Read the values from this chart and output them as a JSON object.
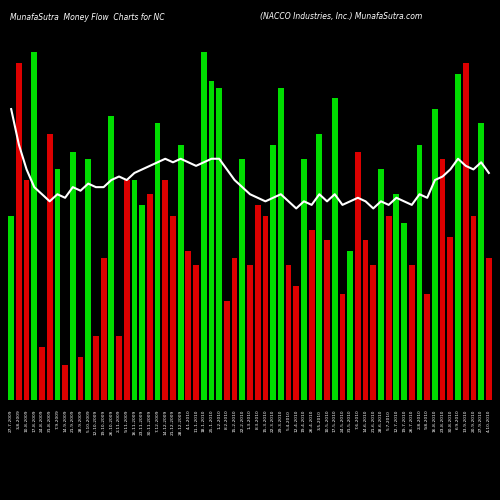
{
  "title_left": "MunafaSutra  Money Flow  Charts for NC",
  "title_right": "(NACCO Industries, Inc.) MunafaSutra.com",
  "background_color": "#000000",
  "bar_colors": [
    "green",
    "red",
    "red",
    "green",
    "red",
    "red",
    "green",
    "red",
    "green",
    "red",
    "green",
    "red",
    "red",
    "green",
    "red",
    "red",
    "green",
    "green",
    "red",
    "green",
    "red",
    "red",
    "green",
    "red",
    "red",
    "green",
    "green",
    "green",
    "red",
    "red",
    "green",
    "red",
    "red",
    "red",
    "green",
    "green",
    "red",
    "red",
    "green",
    "red",
    "green",
    "red",
    "green",
    "red",
    "green",
    "red",
    "red",
    "red",
    "green",
    "red",
    "green",
    "green",
    "red",
    "green",
    "red",
    "green",
    "red",
    "red",
    "green",
    "red",
    "red",
    "green",
    "red"
  ],
  "bar_heights": [
    0.52,
    0.95,
    0.62,
    0.98,
    0.15,
    0.75,
    0.65,
    0.1,
    0.7,
    0.12,
    0.68,
    0.18,
    0.4,
    0.8,
    0.18,
    0.62,
    0.62,
    0.55,
    0.58,
    0.78,
    0.62,
    0.52,
    0.72,
    0.42,
    0.38,
    0.98,
    0.9,
    0.88,
    0.28,
    0.4,
    0.68,
    0.38,
    0.55,
    0.52,
    0.72,
    0.88,
    0.38,
    0.32,
    0.68,
    0.48,
    0.75,
    0.45,
    0.85,
    0.3,
    0.42,
    0.7,
    0.45,
    0.38,
    0.65,
    0.52,
    0.58,
    0.5,
    0.38,
    0.72,
    0.3,
    0.82,
    0.68,
    0.46,
    0.92,
    0.95,
    0.52,
    0.78,
    0.4
  ],
  "line_values": [
    0.82,
    0.72,
    0.65,
    0.6,
    0.58,
    0.56,
    0.58,
    0.57,
    0.6,
    0.59,
    0.61,
    0.6,
    0.6,
    0.62,
    0.63,
    0.62,
    0.64,
    0.65,
    0.66,
    0.67,
    0.68,
    0.67,
    0.68,
    0.67,
    0.66,
    0.67,
    0.68,
    0.68,
    0.65,
    0.62,
    0.6,
    0.58,
    0.57,
    0.56,
    0.57,
    0.58,
    0.56,
    0.54,
    0.56,
    0.55,
    0.58,
    0.56,
    0.58,
    0.55,
    0.56,
    0.57,
    0.56,
    0.54,
    0.56,
    0.55,
    0.57,
    0.56,
    0.55,
    0.58,
    0.57,
    0.62,
    0.63,
    0.65,
    0.68,
    0.66,
    0.65,
    0.67,
    0.64
  ],
  "dates": [
    "27-7-2009",
    "3-8-2009",
    "10-8-2009",
    "17-8-2009",
    "24-8-2009",
    "31-8-2009",
    "7-9-2009",
    "14-9-2009",
    "21-9-2009",
    "28-9-2009",
    "5-10-2009",
    "12-10-2009",
    "19-10-2009",
    "26-10-2009",
    "2-11-2009",
    "9-11-2009",
    "16-11-2009",
    "23-11-2009",
    "30-11-2009",
    "7-12-2009",
    "14-12-2009",
    "21-12-2009",
    "28-12-2009",
    "4-1-2010",
    "11-1-2010",
    "18-1-2010",
    "25-1-2010",
    "1-2-2010",
    "8-2-2010",
    "15-2-2010",
    "22-2-2010",
    "1-3-2010",
    "8-3-2010",
    "15-3-2010",
    "22-3-2010",
    "29-3-2010",
    "5-4-2010",
    "12-4-2010",
    "19-4-2010",
    "26-4-2010",
    "3-5-2010",
    "10-5-2010",
    "17-5-2010",
    "24-5-2010",
    "31-5-2010",
    "7-6-2010",
    "14-6-2010",
    "21-6-2010",
    "28-6-2010",
    "5-7-2010",
    "12-7-2010",
    "19-7-2010",
    "26-7-2010",
    "2-8-2010",
    "9-8-2010",
    "16-8-2010",
    "23-8-2010",
    "30-8-2010",
    "6-9-2010",
    "13-9-2010",
    "20-9-2010",
    "27-9-2010",
    "4-10-2010"
  ],
  "ylim": [
    0,
    1.05
  ],
  "line_color": "#ffffff",
  "green_color": "#00dd00",
  "red_color": "#dd0000"
}
